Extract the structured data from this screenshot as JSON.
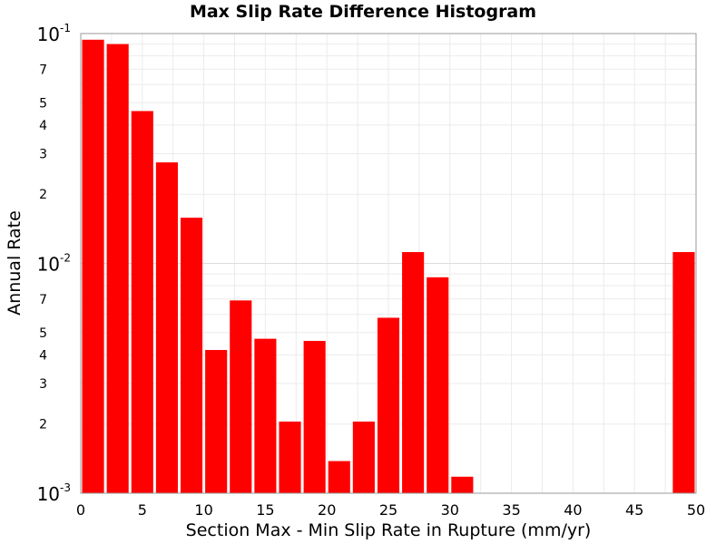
{
  "chart_data": {
    "type": "bar",
    "title": "Max Slip Rate Difference Histogram",
    "xlabel": "Section Max - Min Slip Rate in Rupture (mm/yr)",
    "ylabel": "Annual Rate",
    "y_scale": "log",
    "xlim": [
      0,
      50
    ],
    "ylim": [
      0.001,
      0.1
    ],
    "x_ticks": [
      0,
      5,
      10,
      15,
      20,
      25,
      30,
      35,
      40,
      45,
      50
    ],
    "y_major_ticks": [
      {
        "value": 0.001,
        "base": "10",
        "exp": "-3"
      },
      {
        "value": 0.01,
        "base": "10",
        "exp": "-2"
      },
      {
        "value": 0.1,
        "base": "10",
        "exp": "-1"
      }
    ],
    "y_minor_labeled": [
      2,
      3,
      4,
      5,
      7
    ],
    "bin_width": 2,
    "bar_color": "#ff0000",
    "grid": true,
    "bins": [
      {
        "x": 1,
        "y": 0.094
      },
      {
        "x": 3,
        "y": 0.09
      },
      {
        "x": 5,
        "y": 0.046
      },
      {
        "x": 7,
        "y": 0.0275
      },
      {
        "x": 9,
        "y": 0.0158
      },
      {
        "x": 11,
        "y": 0.0042
      },
      {
        "x": 13,
        "y": 0.0069
      },
      {
        "x": 15,
        "y": 0.0047
      },
      {
        "x": 17,
        "y": 0.00205
      },
      {
        "x": 19,
        "y": 0.0046
      },
      {
        "x": 21,
        "y": 0.00138
      },
      {
        "x": 23,
        "y": 0.00205
      },
      {
        "x": 25,
        "y": 0.0058
      },
      {
        "x": 27,
        "y": 0.0112
      },
      {
        "x": 29,
        "y": 0.0087
      },
      {
        "x": 31,
        "y": 0.00118
      },
      {
        "x": 49,
        "y": 0.0112
      }
    ]
  }
}
